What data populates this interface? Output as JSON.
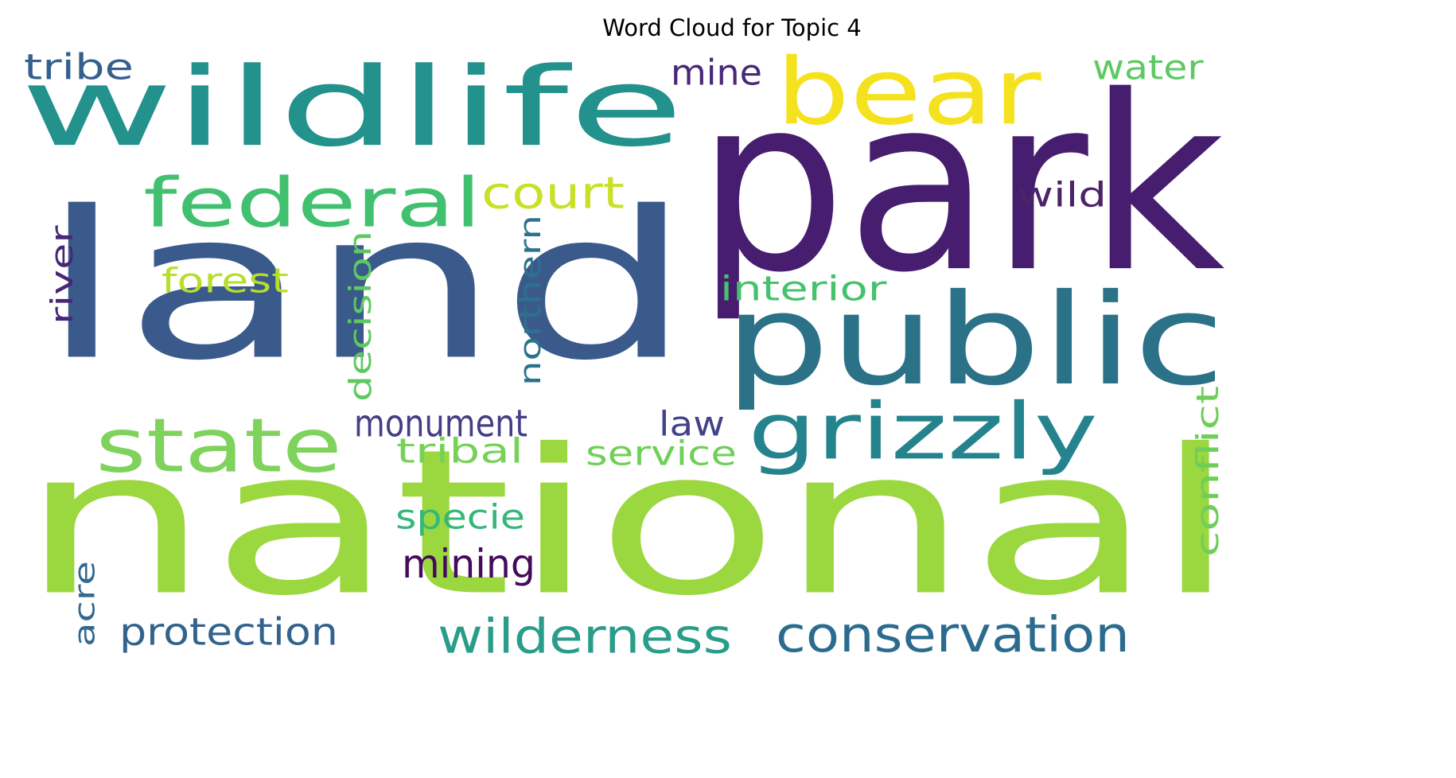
{
  "chart_data": {
    "type": "wordcloud",
    "title": "Word Cloud for Topic 4",
    "colormap": "viridis",
    "background": "#ffffff",
    "words": [
      {
        "text": "land",
        "color": "#3b5a8c",
        "vertical": false
      },
      {
        "text": "national",
        "color": "#9bd73f",
        "vertical": false
      },
      {
        "text": "park",
        "color": "#471e6f",
        "vertical": false
      },
      {
        "text": "wildlife",
        "color": "#23918c",
        "vertical": false
      },
      {
        "text": "public",
        "color": "#2b7187",
        "vertical": false
      },
      {
        "text": "bear",
        "color": "#f5e21e",
        "vertical": false
      },
      {
        "text": "federal",
        "color": "#41c06f",
        "vertical": false
      },
      {
        "text": "state",
        "color": "#7fd35c",
        "vertical": false
      },
      {
        "text": "grizzly",
        "color": "#25838e",
        "vertical": false
      },
      {
        "text": "wilderness",
        "color": "#2a9d8a",
        "vertical": false
      },
      {
        "text": "conservation",
        "color": "#2b6c8e",
        "vertical": false
      },
      {
        "text": "court",
        "color": "#c8e028",
        "vertical": false
      },
      {
        "text": "tribe",
        "color": "#35608d",
        "vertical": false
      },
      {
        "text": "mine",
        "color": "#482878",
        "vertical": false
      },
      {
        "text": "water",
        "color": "#5ec962",
        "vertical": false
      },
      {
        "text": "wild",
        "color": "#4b2468",
        "vertical": false
      },
      {
        "text": "forest",
        "color": "#b6de2b",
        "vertical": false
      },
      {
        "text": "interior",
        "color": "#46c16c",
        "vertical": false
      },
      {
        "text": "monument",
        "color": "#433e85",
        "vertical": false
      },
      {
        "text": "law",
        "color": "#404388",
        "vertical": false
      },
      {
        "text": "tribal",
        "color": "#76d157",
        "vertical": false
      },
      {
        "text": "service",
        "color": "#6fcf58",
        "vertical": false
      },
      {
        "text": "specie",
        "color": "#35b779",
        "vertical": false
      },
      {
        "text": "mining",
        "color": "#460a5d",
        "vertical": false
      },
      {
        "text": "protection",
        "color": "#33638d",
        "vertical": false
      },
      {
        "text": "river",
        "color": "#462777",
        "vertical": true
      },
      {
        "text": "decision",
        "color": "#5ec962",
        "vertical": true
      },
      {
        "text": "northern",
        "color": "#2c728e",
        "vertical": true
      },
      {
        "text": "conflict",
        "color": "#6ece58",
        "vertical": true
      },
      {
        "text": "acre",
        "color": "#31688e",
        "vertical": true
      }
    ]
  }
}
